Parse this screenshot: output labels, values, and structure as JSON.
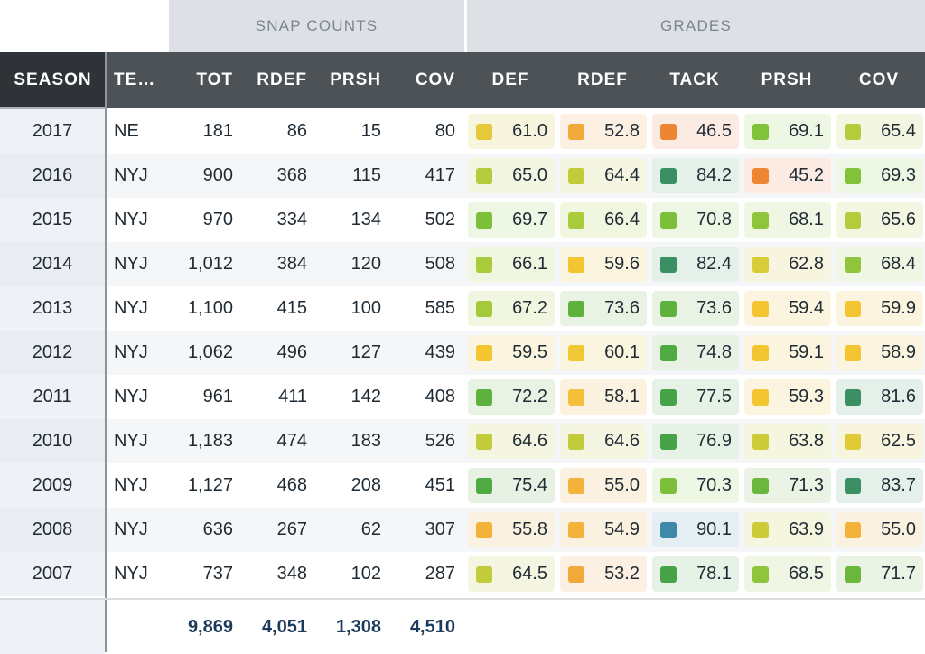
{
  "groups": {
    "snap": "SNAP COUNTS",
    "grades": "GRADES"
  },
  "headers": {
    "season": "SEASON",
    "team": "TE…",
    "tot": "TOT",
    "rdef": "RDEF",
    "prsh": "PRSH",
    "cov": "COV",
    "g_def": "DEF",
    "g_rdef": "RDEF",
    "g_tack": "TACK",
    "g_prsh": "PRSH",
    "g_cov": "COV"
  },
  "colors": {
    "lime": "#c2cc3a",
    "green": "#7cbf3a",
    "darkgreen": "#3a8f63",
    "yellow": "#f2c531",
    "orange": "#f3a93a",
    "redorange": "#ee8530",
    "blue": "#3e88a8"
  },
  "rows": [
    {
      "season": "2017",
      "team": "NE",
      "tot": "181",
      "rdef": "86",
      "prsh": "15",
      "cov": "80",
      "grades": [
        {
          "v": "61.0",
          "c": "#e6c93a",
          "bg": "#f8f5df"
        },
        {
          "v": "52.8",
          "c": "#f3a93a",
          "bg": "#fbf0e2"
        },
        {
          "v": "46.5",
          "c": "#ee8530",
          "bg": "#fcebe2"
        },
        {
          "v": "69.1",
          "c": "#82c13a",
          "bg": "#eef6e4"
        },
        {
          "v": "65.4",
          "c": "#b3cc3c",
          "bg": "#f3f6e1"
        }
      ]
    },
    {
      "season": "2016",
      "team": "NYJ",
      "tot": "900",
      "rdef": "368",
      "prsh": "115",
      "cov": "417",
      "grades": [
        {
          "v": "65.0",
          "c": "#b3cc3c",
          "bg": "#f3f6e1"
        },
        {
          "v": "64.4",
          "c": "#c2cc3a",
          "bg": "#f4f6e1"
        },
        {
          "v": "84.2",
          "c": "#3a8f63",
          "bg": "#e5f0ea"
        },
        {
          "v": "45.2",
          "c": "#ee8530",
          "bg": "#fcebe2"
        },
        {
          "v": "69.3",
          "c": "#82c13a",
          "bg": "#eef6e4"
        }
      ]
    },
    {
      "season": "2015",
      "team": "NYJ",
      "tot": "970",
      "rdef": "334",
      "prsh": "134",
      "cov": "502",
      "grades": [
        {
          "v": "69.7",
          "c": "#7cbf3a",
          "bg": "#eef6e4"
        },
        {
          "v": "66.4",
          "c": "#a9cb3c",
          "bg": "#f1f6e1"
        },
        {
          "v": "70.8",
          "c": "#7cbf3a",
          "bg": "#eef6e4"
        },
        {
          "v": "68.1",
          "c": "#8fc43b",
          "bg": "#eff6e3"
        },
        {
          "v": "65.6",
          "c": "#b3cc3c",
          "bg": "#f3f6e1"
        }
      ]
    },
    {
      "season": "2014",
      "team": "NYJ",
      "tot": "1,012",
      "rdef": "384",
      "prsh": "120",
      "cov": "508",
      "grades": [
        {
          "v": "66.1",
          "c": "#a9cb3c",
          "bg": "#f1f6e1"
        },
        {
          "v": "59.6",
          "c": "#f2c531",
          "bg": "#fbf5e0"
        },
        {
          "v": "82.4",
          "c": "#3a8f63",
          "bg": "#e5f0ea"
        },
        {
          "v": "62.8",
          "c": "#d8cc38",
          "bg": "#f7f5df"
        },
        {
          "v": "68.4",
          "c": "#8fc43b",
          "bg": "#eff6e3"
        }
      ]
    },
    {
      "season": "2013",
      "team": "NYJ",
      "tot": "1,100",
      "rdef": "415",
      "prsh": "100",
      "cov": "585",
      "grades": [
        {
          "v": "67.2",
          "c": "#a4ca3c",
          "bg": "#f1f6e1"
        },
        {
          "v": "73.6",
          "c": "#5fb13e",
          "bg": "#e9f3e4"
        },
        {
          "v": "73.6",
          "c": "#5fb13e",
          "bg": "#e9f3e4"
        },
        {
          "v": "59.4",
          "c": "#f2c531",
          "bg": "#fbf5e0"
        },
        {
          "v": "59.9",
          "c": "#f2c531",
          "bg": "#fbf5e0"
        }
      ]
    },
    {
      "season": "2012",
      "team": "NYJ",
      "tot": "1,062",
      "rdef": "496",
      "prsh": "127",
      "cov": "439",
      "grades": [
        {
          "v": "59.5",
          "c": "#f2c531",
          "bg": "#fbf5e0"
        },
        {
          "v": "60.1",
          "c": "#f0c836",
          "bg": "#faf5df"
        },
        {
          "v": "74.8",
          "c": "#4faa42",
          "bg": "#e7f2e5"
        },
        {
          "v": "59.1",
          "c": "#f2c531",
          "bg": "#fbf5e0"
        },
        {
          "v": "58.9",
          "c": "#f2c531",
          "bg": "#fbf5e0"
        }
      ]
    },
    {
      "season": "2011",
      "team": "NYJ",
      "tot": "961",
      "rdef": "411",
      "prsh": "142",
      "cov": "408",
      "grades": [
        {
          "v": "72.2",
          "c": "#5fb13e",
          "bg": "#e9f3e4"
        },
        {
          "v": "58.1",
          "c": "#f4bf3a",
          "bg": "#fbf2e0"
        },
        {
          "v": "77.5",
          "c": "#46a347",
          "bg": "#e7f2e6"
        },
        {
          "v": "59.3",
          "c": "#f2c531",
          "bg": "#fbf5e0"
        },
        {
          "v": "81.6",
          "c": "#3a8f63",
          "bg": "#e5f0ea"
        }
      ]
    },
    {
      "season": "2010",
      "team": "NYJ",
      "tot": "1,183",
      "rdef": "474",
      "prsh": "183",
      "cov": "526",
      "grades": [
        {
          "v": "64.6",
          "c": "#c2cc3a",
          "bg": "#f4f6e1"
        },
        {
          "v": "64.6",
          "c": "#c2cc3a",
          "bg": "#f4f6e1"
        },
        {
          "v": "76.9",
          "c": "#46a347",
          "bg": "#e7f2e6"
        },
        {
          "v": "63.8",
          "c": "#cccc38",
          "bg": "#f5f6e0"
        },
        {
          "v": "62.5",
          "c": "#e0cb37",
          "bg": "#f8f5df"
        }
      ]
    },
    {
      "season": "2009",
      "team": "NYJ",
      "tot": "1,127",
      "rdef": "468",
      "prsh": "208",
      "cov": "451",
      "grades": [
        {
          "v": "75.4",
          "c": "#4faa42",
          "bg": "#e7f2e5"
        },
        {
          "v": "55.0",
          "c": "#f3b33a",
          "bg": "#fbf1e1"
        },
        {
          "v": "70.3",
          "c": "#7cbf3a",
          "bg": "#eef6e4"
        },
        {
          "v": "71.3",
          "c": "#6bb73d",
          "bg": "#ebf4e4"
        },
        {
          "v": "83.7",
          "c": "#3a8f63",
          "bg": "#e5f0ea"
        }
      ]
    },
    {
      "season": "2008",
      "team": "NYJ",
      "tot": "636",
      "rdef": "267",
      "prsh": "62",
      "cov": "307",
      "grades": [
        {
          "v": "55.8",
          "c": "#f3b33a",
          "bg": "#fbf1e1"
        },
        {
          "v": "54.9",
          "c": "#f3b33a",
          "bg": "#fbf1e1"
        },
        {
          "v": "90.1",
          "c": "#3e88a8",
          "bg": "#e4eef3"
        },
        {
          "v": "63.9",
          "c": "#cccc38",
          "bg": "#f5f6e0"
        },
        {
          "v": "55.0",
          "c": "#f3b33a",
          "bg": "#fbf1e1"
        }
      ]
    },
    {
      "season": "2007",
      "team": "NYJ",
      "tot": "737",
      "rdef": "348",
      "prsh": "102",
      "cov": "287",
      "grades": [
        {
          "v": "64.5",
          "c": "#c2cc3a",
          "bg": "#f4f6e1"
        },
        {
          "v": "53.2",
          "c": "#f3a93a",
          "bg": "#fbf0e2"
        },
        {
          "v": "78.1",
          "c": "#46a347",
          "bg": "#e7f2e6"
        },
        {
          "v": "68.5",
          "c": "#8fc43b",
          "bg": "#eff6e3"
        },
        {
          "v": "71.7",
          "c": "#6bb73d",
          "bg": "#ebf4e4"
        }
      ]
    }
  ],
  "totals": {
    "tot": "9,869",
    "rdef": "4,051",
    "prsh": "1,308",
    "cov": "4,510"
  }
}
